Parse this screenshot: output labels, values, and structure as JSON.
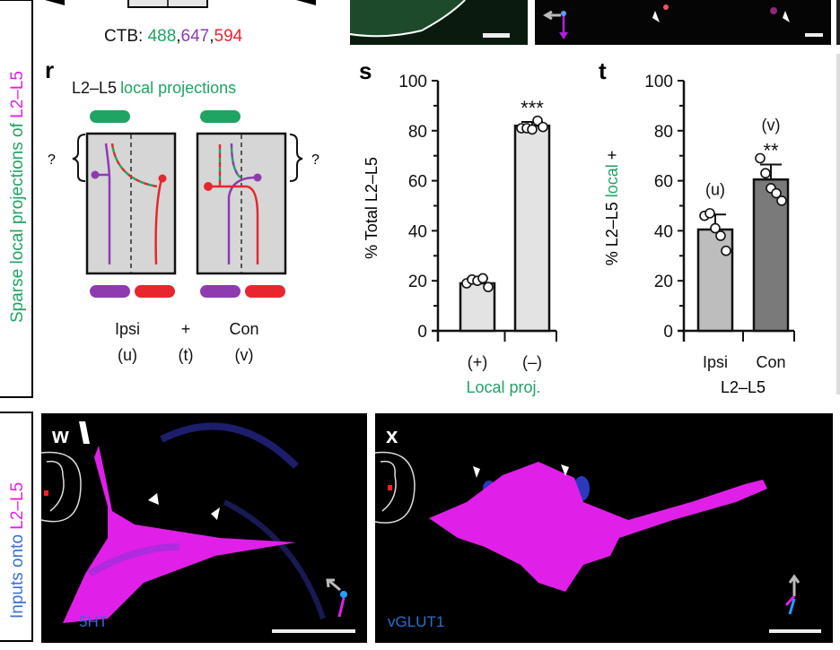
{
  "colors": {
    "green": "#1fa463",
    "purple": "#8e3bb0",
    "red": "#e8262d",
    "magenta": "#e020e8",
    "blue": "#3a6fd8",
    "bar_light": "#e3e3e3",
    "bar_mid": "#bdbdbd",
    "bar_dark": "#7a7a7a",
    "panel_grey": "#d6d6d6"
  },
  "top_strip": {
    "ctb_prefix": "CTB: ",
    "ctb_488": "488",
    "ctb_647": "647",
    "ctb_594": "594"
  },
  "side_labels": {
    "upper_green": "Sparse local projections of ",
    "upper_magenta": "L2–L5",
    "lower_blue": "Inputs onto ",
    "lower_magenta": "L2–L5"
  },
  "panel_r": {
    "letter": "r",
    "title_black": "L2–L5",
    "title_green": "local projections",
    "question_left": "?",
    "question_right": "?",
    "ipsi": "Ipsi",
    "ipsi_sub": "(u)",
    "plus": "+",
    "plus_sub": "(t)",
    "con": "Con",
    "con_sub": "(v)"
  },
  "chart_data": [
    {
      "panel": "s",
      "type": "bar",
      "categories": [
        "(+)",
        "(–)"
      ],
      "values": [
        19,
        82
      ],
      "error": [
        2,
        1.5
      ],
      "points": [
        [
          19,
          20.5,
          20,
          21,
          17.5
        ],
        [
          81,
          81,
          80.5,
          84,
          81.5
        ]
      ],
      "annotations": [
        "",
        "***"
      ],
      "ylabel": "% Total L2–L5",
      "xlabel": "Local proj.",
      "ylim": [
        0,
        100
      ],
      "yticks": [
        "0",
        "20",
        "40",
        "60",
        "80",
        "100"
      ],
      "grid": false
    },
    {
      "panel": "t",
      "type": "bar",
      "categories": [
        "Ipsi",
        "Con"
      ],
      "values": [
        40.5,
        60.5
      ],
      "error": [
        6,
        6
      ],
      "points": [
        [
          46,
          47,
          41,
          38,
          32
        ],
        [
          69,
          63,
          57,
          55,
          52
        ]
      ],
      "annotations": [
        "(u)",
        "**"
      ],
      "annotation_top": [
        "",
        "(v)"
      ],
      "ylabel_parts": [
        "% L2–L5 ",
        "local",
        " +"
      ],
      "xlabel": "L2–L5",
      "ylim": [
        0,
        100
      ],
      "yticks": [
        "0",
        "20",
        "40",
        "60",
        "80",
        "100"
      ],
      "grid": false
    }
  ],
  "panel_w": {
    "letter": "w",
    "marker": "5HT"
  },
  "panel_x": {
    "letter": "x",
    "marker": "vGLUT1"
  }
}
